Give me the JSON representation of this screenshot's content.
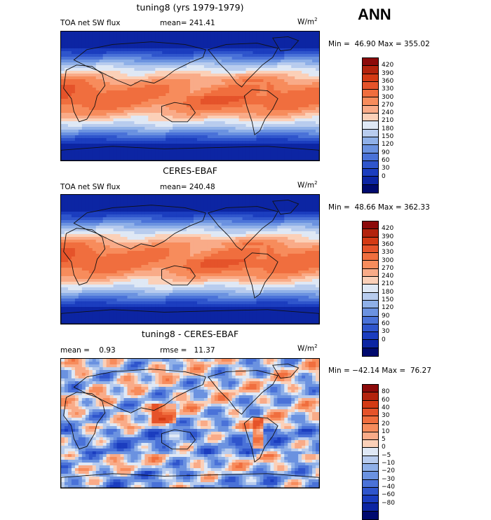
{
  "season": "ANN",
  "units": {
    "base": "W/m",
    "exp": "2"
  },
  "panels": [
    {
      "title": "tuning8 (yrs 1979-1979)",
      "left_label": "TOA net SW flux",
      "center_label": "mean= 241.41",
      "minmax": "Min =  46.90 Max = 355.02",
      "kind": "abs",
      "colorbar": {
        "ticks": [
          "420",
          "390",
          "360",
          "330",
          "300",
          "270",
          "240",
          "210",
          "180",
          "150",
          "120",
          "90",
          "60",
          "30",
          "0"
        ],
        "colors": [
          "#8c0a0a",
          "#b3230d",
          "#d43a14",
          "#e5532a",
          "#f06e3e",
          "#f78c5c",
          "#f9ab88",
          "#fbd0b8",
          "#dfe8f5",
          "#b8ccee",
          "#8fb0e8",
          "#6b92e0",
          "#4a72d8",
          "#2f55cc",
          "#1b3dbf",
          "#0c25a3",
          "#000a6e"
        ]
      }
    },
    {
      "title": "CERES-EBAF",
      "left_label": "TOA net SW flux",
      "center_label": "mean= 240.48",
      "minmax": "Min =  48.66 Max = 362.33",
      "kind": "abs",
      "colorbar": {
        "ticks": [
          "420",
          "390",
          "360",
          "330",
          "300",
          "270",
          "240",
          "210",
          "180",
          "150",
          "120",
          "90",
          "60",
          "30",
          "0"
        ],
        "colors": [
          "#8c0a0a",
          "#b3230d",
          "#d43a14",
          "#e5532a",
          "#f06e3e",
          "#f78c5c",
          "#f9ab88",
          "#fbd0b8",
          "#dfe8f5",
          "#b8ccee",
          "#8fb0e8",
          "#6b92e0",
          "#4a72d8",
          "#2f55cc",
          "#1b3dbf",
          "#0c25a3",
          "#000a6e"
        ]
      }
    },
    {
      "title": "tuning8 - CERES-EBAF",
      "left_label": "mean =    0.93",
      "center_label": "rmse =   11.37",
      "minmax": "Min = −42.14 Max =  76.27",
      "kind": "diff",
      "colorbar": {
        "ticks": [
          "80",
          "60",
          "40",
          "30",
          "20",
          "10",
          "5",
          "0",
          "−5",
          "−10",
          "−20",
          "−30",
          "−40",
          "−60",
          "−80"
        ],
        "colors": [
          "#8c0a0a",
          "#b3230d",
          "#d43a14",
          "#e5532a",
          "#f06e3e",
          "#f78c5c",
          "#f9ab88",
          "#fbd0b8",
          "#dfe8f5",
          "#b8ccee",
          "#8fb0e8",
          "#6b92e0",
          "#4a72d8",
          "#2f55cc",
          "#1b3dbf",
          "#0c25a3",
          "#000a6e"
        ]
      }
    }
  ]
}
